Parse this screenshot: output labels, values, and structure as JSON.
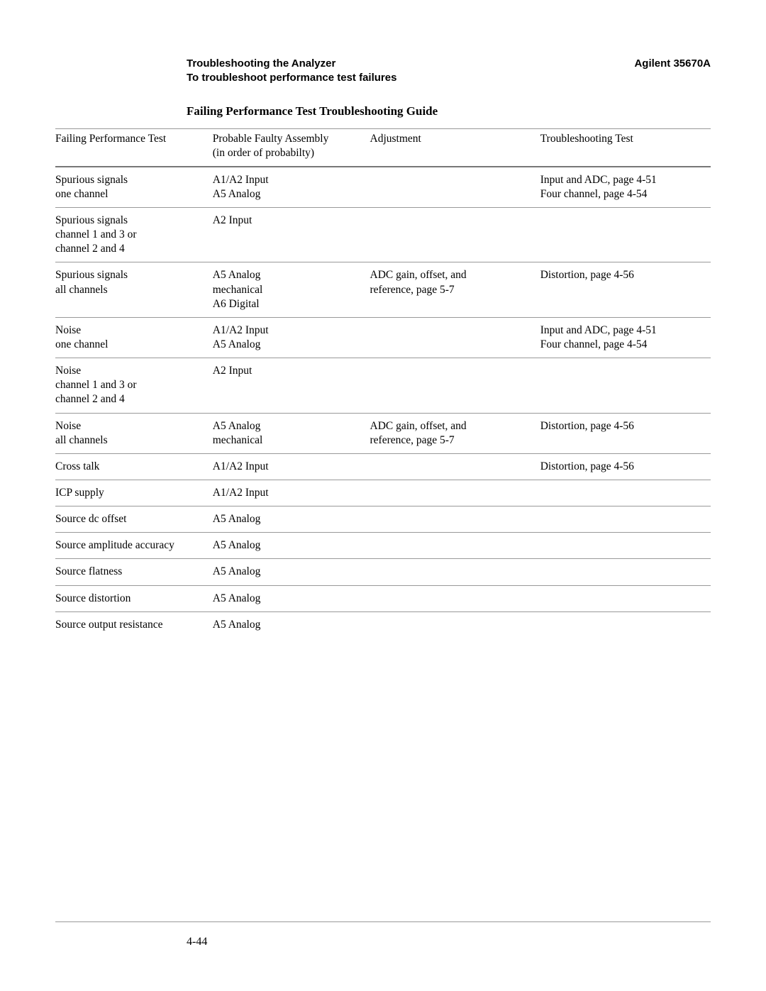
{
  "header": {
    "left_line1": "Troubleshooting the Analyzer",
    "left_line2": "To troubleshoot performance test failures",
    "right": "Agilent 35670A"
  },
  "section_title": "Failing Performance Test Troubleshooting Guide",
  "columns": [
    "Failing Performance Test",
    "Probable Faulty Assembly\n(in order of probabilty)",
    "Adjustment",
    "Troubleshooting Test"
  ],
  "rows": [
    {
      "test": "Spurious signals\none channel",
      "assembly": "A1/A2 Input\nA5 Analog",
      "adjustment": "",
      "trouble": "Input and ADC, page 4-51\nFour channel, page 4-54"
    },
    {
      "test": "Spurious signals\nchannel 1 and 3 or\nchannel 2 and 4",
      "assembly": "A2 Input",
      "adjustment": "",
      "trouble": ""
    },
    {
      "test": "Spurious signals\nall channels",
      "assembly": "A5 Analog\nmechanical\nA6 Digital",
      "adjustment": "ADC gain, offset, and\nreference, page 5-7",
      "trouble": "Distortion, page 4-56"
    },
    {
      "test": "Noise\none channel",
      "assembly": "A1/A2 Input\nA5 Analog",
      "adjustment": "",
      "trouble": "Input and ADC, page 4-51\nFour channel, page 4-54"
    },
    {
      "test": "Noise\nchannel 1 and 3 or\nchannel 2 and 4",
      "assembly": "A2 Input",
      "adjustment": "",
      "trouble": ""
    },
    {
      "test": "Noise\nall channels",
      "assembly": "A5 Analog\nmechanical",
      "adjustment": "ADC gain, offset, and\nreference, page 5-7",
      "trouble": "Distortion, page 4-56"
    },
    {
      "test": "Cross talk",
      "assembly": "A1/A2 Input",
      "adjustment": "",
      "trouble": "Distortion, page 4-56"
    },
    {
      "test": "ICP supply",
      "assembly": "A1/A2 Input",
      "adjustment": "",
      "trouble": ""
    },
    {
      "test": "Source dc offset",
      "assembly": "A5 Analog",
      "adjustment": "",
      "trouble": ""
    },
    {
      "test": "Source amplitude accuracy",
      "assembly": "A5 Analog",
      "adjustment": "",
      "trouble": ""
    },
    {
      "test": "Source flatness",
      "assembly": "A5 Analog",
      "adjustment": "",
      "trouble": ""
    },
    {
      "test": "Source distortion",
      "assembly": "A5 Analog",
      "adjustment": "",
      "trouble": ""
    },
    {
      "test": "Source output resistance",
      "assembly": "A5 Analog",
      "adjustment": "",
      "trouble": ""
    }
  ],
  "last_row_no_border": true,
  "page_number": "4-44"
}
